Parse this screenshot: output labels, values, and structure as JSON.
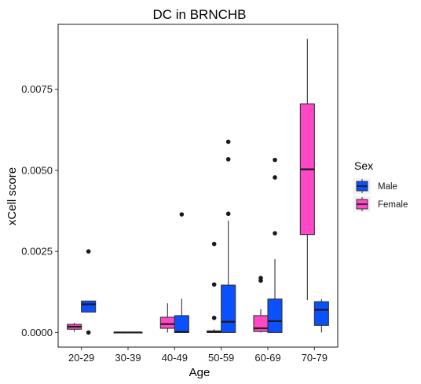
{
  "chart_data": {
    "type": "boxplot",
    "title": "DC in BRNCHB",
    "xlabel": "Age",
    "ylabel": "xCell score",
    "ylim": [
      -0.00045,
      0.0095
    ],
    "yticks": [
      "0.0000",
      "0.0025",
      "0.0050",
      "0.0075"
    ],
    "ytick_values": [
      0,
      0.0025,
      0.005,
      0.0075
    ],
    "categories": [
      "20-29",
      "30-39",
      "40-49",
      "50-59",
      "60-69",
      "70-79"
    ],
    "legend": {
      "title": "Sex",
      "position": "right",
      "entries": [
        {
          "name": "Male",
          "color": "#0a50ff"
        },
        {
          "name": "Female",
          "color": "#ff47c8"
        }
      ]
    },
    "grid": false,
    "series": [
      {
        "name": "Female",
        "color": "#ff47c8",
        "boxes": [
          {
            "category": "20-29",
            "lower_whisker": 2e-05,
            "q1": 0.0001,
            "median": 0.00018,
            "q3": 0.00025,
            "upper_whisker": 0.0003,
            "outliers": []
          },
          {
            "category": "30-39",
            "lower_whisker": 0.0,
            "q1": 0.0,
            "median": 0.0,
            "q3": 0.0,
            "upper_whisker": 0.0,
            "outliers": []
          },
          {
            "category": "40-49",
            "lower_whisker": 0.0,
            "q1": 0.00013,
            "median": 0.00026,
            "q3": 0.00047,
            "upper_whisker": 0.0009,
            "outliers": []
          },
          {
            "category": "50-59",
            "lower_whisker": 0.0,
            "q1": 0.0,
            "median": 2e-05,
            "q3": 5e-05,
            "upper_whisker": 0.0001,
            "outliers": [
              0.00045,
              0.00148,
              0.00273
            ]
          },
          {
            "category": "60-69",
            "lower_whisker": 0.0,
            "q1": 3e-05,
            "median": 0.00013,
            "q3": 0.00052,
            "upper_whisker": 0.00072,
            "outliers": [
              0.0016,
              0.00168
            ]
          },
          {
            "category": "70-79",
            "lower_whisker": 0.001,
            "q1": 0.00302,
            "median": 0.00503,
            "q3": 0.00705,
            "upper_whisker": 0.00905,
            "outliers": []
          }
        ]
      },
      {
        "name": "Male",
        "color": "#0a50ff",
        "boxes": [
          {
            "category": "20-29",
            "lower_whisker": 0.00063,
            "q1": 0.00063,
            "median": 0.00087,
            "q3": 0.00097,
            "upper_whisker": 0.00097,
            "outliers": [
              0.0,
              0.0025
            ]
          },
          {
            "category": "30-39",
            "lower_whisker": 0.0,
            "q1": 0.0,
            "median": 0.0,
            "q3": 0.0,
            "upper_whisker": 0.0,
            "outliers": []
          },
          {
            "category": "40-49",
            "lower_whisker": 0.0,
            "q1": 0.0,
            "median": 2e-05,
            "q3": 0.00052,
            "upper_whisker": 0.00104,
            "outliers": [
              0.00364
            ]
          },
          {
            "category": "50-59",
            "lower_whisker": 0.0,
            "q1": 0.0,
            "median": 0.00033,
            "q3": 0.00146,
            "upper_whisker": 0.00345,
            "outliers": [
              0.00366,
              0.00534,
              0.00588
            ]
          },
          {
            "category": "60-69",
            "lower_whisker": 0.0,
            "q1": 0.0,
            "median": 0.00035,
            "q3": 0.00103,
            "upper_whisker": 0.00226,
            "outliers": [
              0.00306,
              0.00478,
              0.00532
            ]
          },
          {
            "category": "70-79",
            "lower_whisker": 0.0,
            "q1": 0.00022,
            "median": 0.0007,
            "q3": 0.00095,
            "upper_whisker": 0.00103,
            "outliers": []
          }
        ]
      }
    ]
  }
}
